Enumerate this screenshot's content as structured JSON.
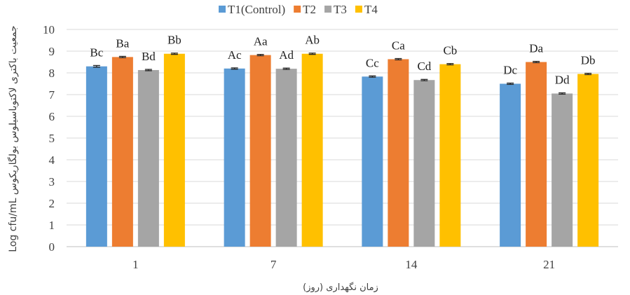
{
  "chart_data": {
    "type": "bar",
    "title": "",
    "xlabel": "زمان نگهداری (روز)",
    "ylabel": "Log cfu/mL جمعیت باکتری لاکتوباسیلوس بولگاریکوس",
    "ylim": [
      0,
      10
    ],
    "yticks": [
      "0",
      "1",
      "2",
      "3",
      "4",
      "5",
      "6",
      "7",
      "8",
      "9",
      "10"
    ],
    "grid": true,
    "legend_position": "top",
    "categories": [
      "1",
      "7",
      "14",
      "21"
    ],
    "series": [
      {
        "name": "T1(Control)",
        "color": "#5B9BD5",
        "values": [
          8.3,
          8.2,
          7.83,
          7.5
        ],
        "errors": [
          0.04,
          0.03,
          0.03,
          0.03
        ],
        "labels": [
          "Bc",
          "Ac",
          "Cc",
          "Dc"
        ]
      },
      {
        "name": "T2",
        "color": "#ED7D31",
        "values": [
          8.73,
          8.82,
          8.63,
          8.5
        ],
        "errors": [
          0.03,
          0.03,
          0.03,
          0.03
        ],
        "labels": [
          "Ba",
          "Aa",
          "Ca",
          "Da"
        ]
      },
      {
        "name": "T3",
        "color": "#A5A5A5",
        "values": [
          8.13,
          8.19,
          7.67,
          7.05
        ],
        "errors": [
          0.03,
          0.03,
          0.03,
          0.03
        ],
        "labels": [
          "Bd",
          "Ad",
          "Cd",
          "Dd"
        ]
      },
      {
        "name": "T4",
        "color": "#FFC000",
        "values": [
          8.88,
          8.88,
          8.4,
          7.95
        ],
        "errors": [
          0.03,
          0.03,
          0.03,
          0.03
        ],
        "labels": [
          "Bb",
          "Ab",
          "Cb",
          "Db"
        ]
      }
    ]
  }
}
